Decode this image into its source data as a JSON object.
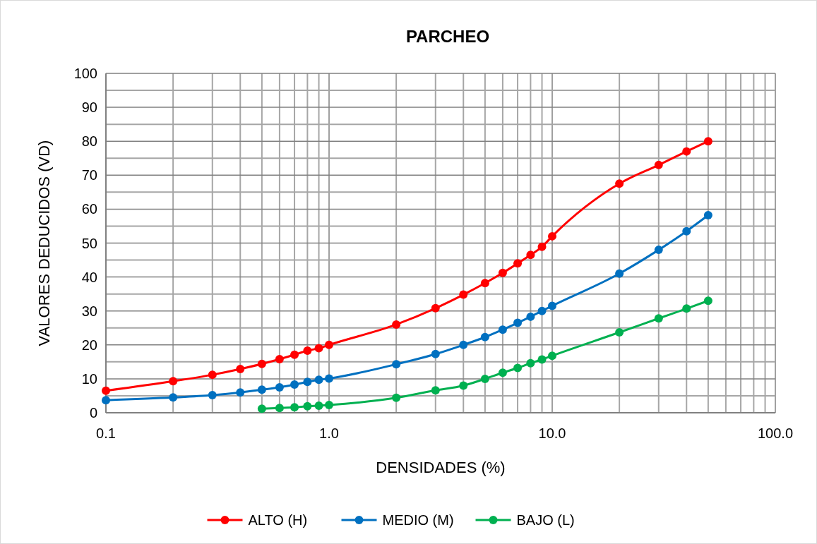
{
  "chart_data": {
    "type": "line",
    "title": "PARCHEO",
    "xlabel": "DENSIDADES (%)",
    "ylabel": "VALORES DEDUCIDOS (VD)",
    "log": "x",
    "grid": true,
    "legend": "bottom",
    "marker": "circle",
    "line_style": "solid",
    "xlim": [
      0.1,
      100
    ],
    "ylim": [
      0,
      100
    ],
    "xticks": [
      {
        "value": 0.1,
        "label": "0.1"
      },
      {
        "value": 0.2,
        "label": null
      },
      {
        "value": 0.3,
        "label": null
      },
      {
        "value": 0.4,
        "label": null
      },
      {
        "value": 0.5,
        "label": null
      },
      {
        "value": 0.6,
        "label": null
      },
      {
        "value": 0.7,
        "label": null
      },
      {
        "value": 0.8,
        "label": null
      },
      {
        "value": 0.9,
        "label": null
      },
      {
        "value": 1,
        "label": "1.0"
      },
      {
        "value": 2,
        "label": null
      },
      {
        "value": 3,
        "label": null
      },
      {
        "value": 4,
        "label": null
      },
      {
        "value": 5,
        "label": null
      },
      {
        "value": 6,
        "label": null
      },
      {
        "value": 7,
        "label": null
      },
      {
        "value": 8,
        "label": null
      },
      {
        "value": 9,
        "label": null
      },
      {
        "value": 10,
        "label": "10.0"
      },
      {
        "value": 20,
        "label": null
      },
      {
        "value": 30,
        "label": null
      },
      {
        "value": 40,
        "label": null
      },
      {
        "value": 50,
        "label": null
      },
      {
        "value": 60,
        "label": null
      },
      {
        "value": 70,
        "label": null
      },
      {
        "value": 80,
        "label": null
      },
      {
        "value": 90,
        "label": null
      },
      {
        "value": 100,
        "label": "100.0"
      }
    ],
    "yticks": [
      0,
      {
        "value": 5,
        "label": null
      },
      10,
      {
        "value": 15,
        "label": null
      },
      20,
      {
        "value": 25,
        "label": null
      },
      30,
      {
        "value": 35,
        "label": null
      },
      40,
      {
        "value": 45,
        "label": null
      },
      50,
      {
        "value": 55,
        "label": null
      },
      60,
      {
        "value": 65,
        "label": null
      },
      70,
      {
        "value": 75,
        "label": null
      },
      80,
      {
        "value": 85,
        "label": null
      },
      90,
      {
        "value": 95,
        "label": null
      },
      100
    ],
    "series": [
      {
        "name": "ALTO (H)",
        "color": "#ff0000",
        "x": [
          0.1,
          0.2,
          0.3,
          0.4,
          0.5,
          0.6,
          0.7,
          0.8,
          0.9,
          1,
          2,
          3,
          4,
          5,
          6,
          7,
          8,
          9,
          10,
          20,
          30,
          40,
          50
        ],
        "values": [
          6.5,
          9.3,
          11.2,
          12.9,
          14.4,
          15.8,
          17.1,
          18.3,
          19.0,
          20,
          26,
          30.8,
          34.8,
          38.2,
          41.2,
          44,
          46.5,
          48.9,
          52,
          67.5,
          73,
          77,
          80
        ]
      },
      {
        "name": "MEDIO (M)",
        "color": "#0070c0",
        "x": [
          0.1,
          0.2,
          0.3,
          0.4,
          0.5,
          0.6,
          0.7,
          0.8,
          0.9,
          1,
          2,
          3,
          4,
          5,
          6,
          7,
          8,
          9,
          10,
          20,
          30,
          40,
          50
        ],
        "values": [
          3.7,
          4.5,
          5.2,
          6.0,
          6.8,
          7.5,
          8.3,
          9.1,
          9.7,
          10.1,
          14.3,
          17.3,
          20,
          22.3,
          24.5,
          26.5,
          28.3,
          30,
          31.5,
          41,
          48,
          53.5,
          58.2
        ]
      },
      {
        "name": "BAJO (L)",
        "color": "#00b050",
        "x": [
          0.5,
          0.6,
          0.7,
          0.8,
          0.9,
          1,
          2,
          3,
          4,
          5,
          6,
          7,
          8,
          9,
          10,
          20,
          30,
          40,
          50
        ],
        "values": [
          1.2,
          1.4,
          1.6,
          1.9,
          2.1,
          2.3,
          4.4,
          6.6,
          8.0,
          10,
          11.8,
          13.2,
          14.6,
          15.7,
          16.8,
          23.7,
          27.8,
          30.7,
          33
        ]
      }
    ]
  }
}
